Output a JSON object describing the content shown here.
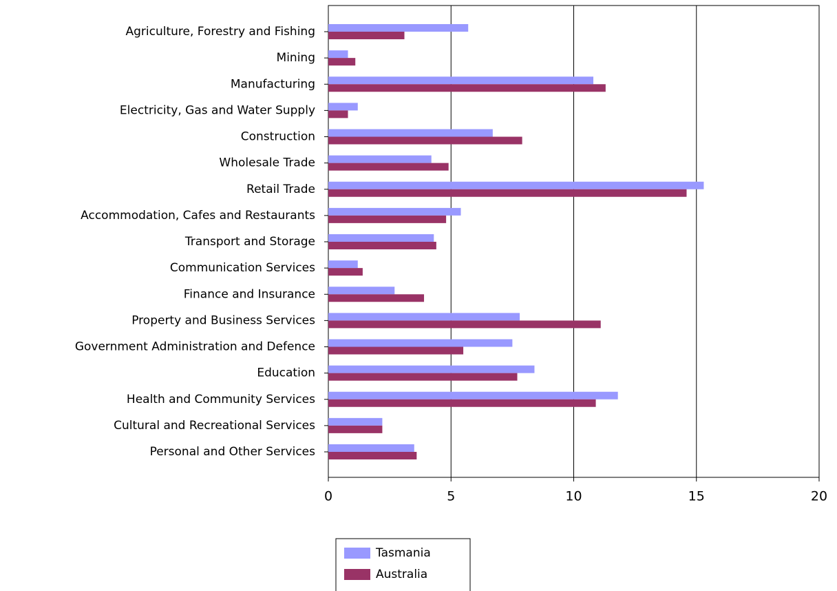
{
  "chart_data": {
    "type": "bar",
    "orientation": "horizontal",
    "categories": [
      "Agriculture, Forestry and Fishing",
      "Mining",
      "Manufacturing",
      "Electricity, Gas and Water Supply",
      "Construction",
      "Wholesale Trade",
      "Retail Trade",
      "Accommodation, Cafes and Restaurants",
      "Transport and Storage",
      "Communication Services",
      "Finance and Insurance",
      "Property and Business Services",
      "Government Administration and Defence",
      "Education",
      "Health and Community Services",
      "Cultural and Recreational Services",
      "Personal and Other Services"
    ],
    "series": [
      {
        "name": "Tasmania",
        "color": "#9999ff",
        "values": [
          5.7,
          0.8,
          10.8,
          1.2,
          6.7,
          4.2,
          15.3,
          5.4,
          4.3,
          1.2,
          2.7,
          7.8,
          7.5,
          8.4,
          11.8,
          2.2,
          3.5
        ]
      },
      {
        "name": "Australia",
        "color": "#993366",
        "values": [
          3.1,
          1.1,
          11.3,
          0.8,
          7.9,
          4.9,
          14.6,
          4.8,
          4.4,
          1.4,
          3.9,
          11.1,
          5.5,
          7.7,
          10.9,
          2.2,
          3.6
        ]
      }
    ],
    "xlim": [
      0,
      20
    ],
    "xticks": [
      0,
      5,
      10,
      15,
      20
    ],
    "grid": true,
    "legend": "bottom"
  }
}
